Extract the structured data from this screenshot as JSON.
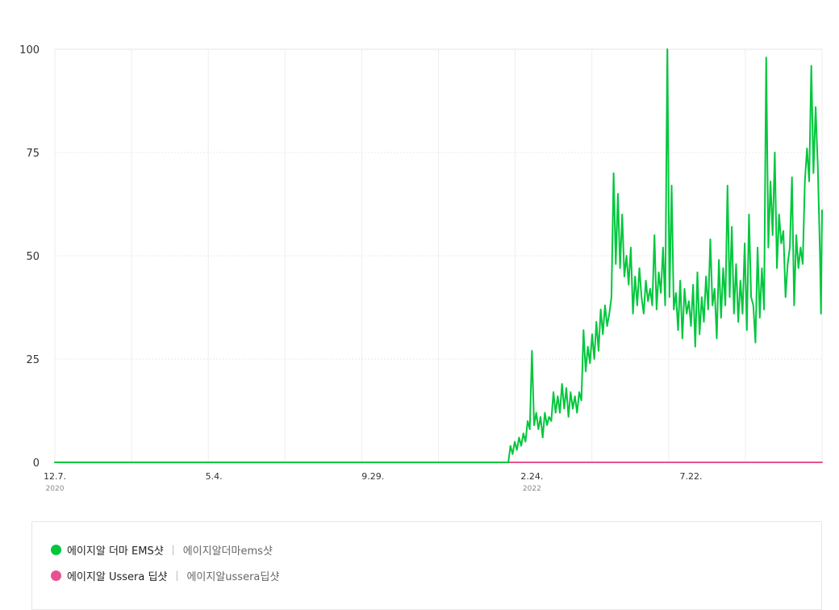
{
  "chart_data": {
    "type": "line",
    "y_ticks": [
      "0",
      "25",
      "50",
      "75",
      "100"
    ],
    "ylim": [
      0,
      100
    ],
    "grid": true,
    "legend_position": "bottom",
    "x_ticks": [
      {
        "label": "12.7.",
        "sub": "2020",
        "x": "2020-12-07"
      },
      {
        "label": "5.4.",
        "sub": "",
        "x": "2021-05-04"
      },
      {
        "label": "9.29.",
        "sub": "",
        "x": "2021-09-29"
      },
      {
        "label": "2.24.",
        "sub": "2022",
        "x": "2022-02-24"
      },
      {
        "label": "7.22.",
        "sub": "",
        "x": "2022-07-22"
      }
    ],
    "x_range": [
      "2020-12-07",
      "2022-11-21"
    ],
    "series": [
      {
        "name": "에이지알 더마 EMS샷",
        "keyword": "에이지알더마ems샷",
        "color": "#00c73c",
        "points": [
          [
            "2020-12-07",
            0
          ],
          [
            "2021-06-01",
            0
          ],
          [
            "2021-12-01",
            0
          ],
          [
            "2022-02-02",
            0
          ],
          [
            "2022-02-04",
            4
          ],
          [
            "2022-02-06",
            2
          ],
          [
            "2022-02-08",
            5
          ],
          [
            "2022-02-10",
            3
          ],
          [
            "2022-02-12",
            6
          ],
          [
            "2022-02-14",
            4
          ],
          [
            "2022-02-16",
            7
          ],
          [
            "2022-02-18",
            5
          ],
          [
            "2022-02-20",
            10
          ],
          [
            "2022-02-22",
            8
          ],
          [
            "2022-02-24",
            27
          ],
          [
            "2022-02-26",
            9
          ],
          [
            "2022-02-28",
            12
          ],
          [
            "2022-03-02",
            8
          ],
          [
            "2022-03-04",
            11
          ],
          [
            "2022-03-06",
            6
          ],
          [
            "2022-03-08",
            12
          ],
          [
            "2022-03-10",
            9
          ],
          [
            "2022-03-12",
            11
          ],
          [
            "2022-03-14",
            10
          ],
          [
            "2022-03-16",
            17
          ],
          [
            "2022-03-18",
            12
          ],
          [
            "2022-03-20",
            16
          ],
          [
            "2022-03-22",
            12
          ],
          [
            "2022-03-24",
            19
          ],
          [
            "2022-03-26",
            13
          ],
          [
            "2022-03-28",
            18
          ],
          [
            "2022-03-30",
            11
          ],
          [
            "2022-04-01",
            17
          ],
          [
            "2022-04-03",
            13
          ],
          [
            "2022-04-05",
            16
          ],
          [
            "2022-04-07",
            12
          ],
          [
            "2022-04-09",
            17
          ],
          [
            "2022-04-11",
            15
          ],
          [
            "2022-04-13",
            32
          ],
          [
            "2022-04-15",
            22
          ],
          [
            "2022-04-17",
            28
          ],
          [
            "2022-04-19",
            24
          ],
          [
            "2022-04-21",
            31
          ],
          [
            "2022-04-23",
            25
          ],
          [
            "2022-04-25",
            34
          ],
          [
            "2022-04-27",
            27
          ],
          [
            "2022-04-29",
            37
          ],
          [
            "2022-05-01",
            31
          ],
          [
            "2022-05-03",
            38
          ],
          [
            "2022-05-05",
            33
          ],
          [
            "2022-05-07",
            36
          ],
          [
            "2022-05-09",
            40
          ],
          [
            "2022-05-11",
            70
          ],
          [
            "2022-05-13",
            48
          ],
          [
            "2022-05-15",
            65
          ],
          [
            "2022-05-17",
            47
          ],
          [
            "2022-05-19",
            60
          ],
          [
            "2022-05-21",
            45
          ],
          [
            "2022-05-23",
            50
          ],
          [
            "2022-05-25",
            43
          ],
          [
            "2022-05-27",
            52
          ],
          [
            "2022-05-29",
            36
          ],
          [
            "2022-05-31",
            45
          ],
          [
            "2022-06-02",
            38
          ],
          [
            "2022-06-04",
            47
          ],
          [
            "2022-06-06",
            40
          ],
          [
            "2022-06-08",
            36
          ],
          [
            "2022-06-10",
            44
          ],
          [
            "2022-06-12",
            39
          ],
          [
            "2022-06-14",
            42
          ],
          [
            "2022-06-16",
            38
          ],
          [
            "2022-06-18",
            55
          ],
          [
            "2022-06-20",
            37
          ],
          [
            "2022-06-22",
            46
          ],
          [
            "2022-06-24",
            41
          ],
          [
            "2022-06-26",
            52
          ],
          [
            "2022-06-28",
            38
          ],
          [
            "2022-06-30",
            100
          ],
          [
            "2022-07-02",
            40
          ],
          [
            "2022-07-04",
            67
          ],
          [
            "2022-07-06",
            37
          ],
          [
            "2022-07-08",
            41
          ],
          [
            "2022-07-10",
            32
          ],
          [
            "2022-07-12",
            44
          ],
          [
            "2022-07-14",
            30
          ],
          [
            "2022-07-16",
            42
          ],
          [
            "2022-07-18",
            36
          ],
          [
            "2022-07-20",
            39
          ],
          [
            "2022-07-22",
            33
          ],
          [
            "2022-07-24",
            43
          ],
          [
            "2022-07-26",
            28
          ],
          [
            "2022-07-28",
            46
          ],
          [
            "2022-07-30",
            31
          ],
          [
            "2022-08-01",
            40
          ],
          [
            "2022-08-03",
            34
          ],
          [
            "2022-08-05",
            45
          ],
          [
            "2022-08-07",
            37
          ],
          [
            "2022-08-09",
            54
          ],
          [
            "2022-08-11",
            38
          ],
          [
            "2022-08-13",
            42
          ],
          [
            "2022-08-15",
            30
          ],
          [
            "2022-08-17",
            49
          ],
          [
            "2022-08-19",
            35
          ],
          [
            "2022-08-21",
            47
          ],
          [
            "2022-08-23",
            38
          ],
          [
            "2022-08-25",
            67
          ],
          [
            "2022-08-27",
            40
          ],
          [
            "2022-08-29",
            57
          ],
          [
            "2022-08-31",
            36
          ],
          [
            "2022-09-02",
            48
          ],
          [
            "2022-09-04",
            34
          ],
          [
            "2022-09-06",
            44
          ],
          [
            "2022-09-08",
            36
          ],
          [
            "2022-09-10",
            53
          ],
          [
            "2022-09-12",
            32
          ],
          [
            "2022-09-14",
            60
          ],
          [
            "2022-09-16",
            40
          ],
          [
            "2022-09-18",
            38
          ],
          [
            "2022-09-20",
            29
          ],
          [
            "2022-09-22",
            52
          ],
          [
            "2022-09-24",
            35
          ],
          [
            "2022-09-26",
            47
          ],
          [
            "2022-09-28",
            37
          ],
          [
            "2022-09-30",
            98
          ],
          [
            "2022-10-02",
            52
          ],
          [
            "2022-10-04",
            68
          ],
          [
            "2022-10-06",
            55
          ],
          [
            "2022-10-08",
            75
          ],
          [
            "2022-10-10",
            47
          ],
          [
            "2022-10-12",
            60
          ],
          [
            "2022-10-14",
            53
          ],
          [
            "2022-10-16",
            56
          ],
          [
            "2022-10-18",
            40
          ],
          [
            "2022-10-20",
            48
          ],
          [
            "2022-10-22",
            52
          ],
          [
            "2022-10-24",
            69
          ],
          [
            "2022-10-26",
            38
          ],
          [
            "2022-10-28",
            55
          ],
          [
            "2022-10-30",
            47
          ],
          [
            "2022-11-01",
            52
          ],
          [
            "2022-11-03",
            48
          ],
          [
            "2022-11-05",
            68
          ],
          [
            "2022-11-07",
            76
          ],
          [
            "2022-11-09",
            68
          ],
          [
            "2022-11-11",
            96
          ],
          [
            "2022-11-13",
            70
          ],
          [
            "2022-11-15",
            86
          ],
          [
            "2022-11-17",
            72
          ],
          [
            "2022-11-19",
            51
          ],
          [
            "2022-11-20",
            36
          ],
          [
            "2022-11-21",
            61
          ]
        ]
      },
      {
        "name": "에이지알 Ussera 딥샷",
        "keyword": "에이지알ussera딥샷",
        "color": "#e8518f",
        "points": [
          [
            "2020-12-07",
            0
          ],
          [
            "2022-11-21",
            0
          ]
        ]
      }
    ]
  },
  "legend": {
    "separator": "|"
  }
}
